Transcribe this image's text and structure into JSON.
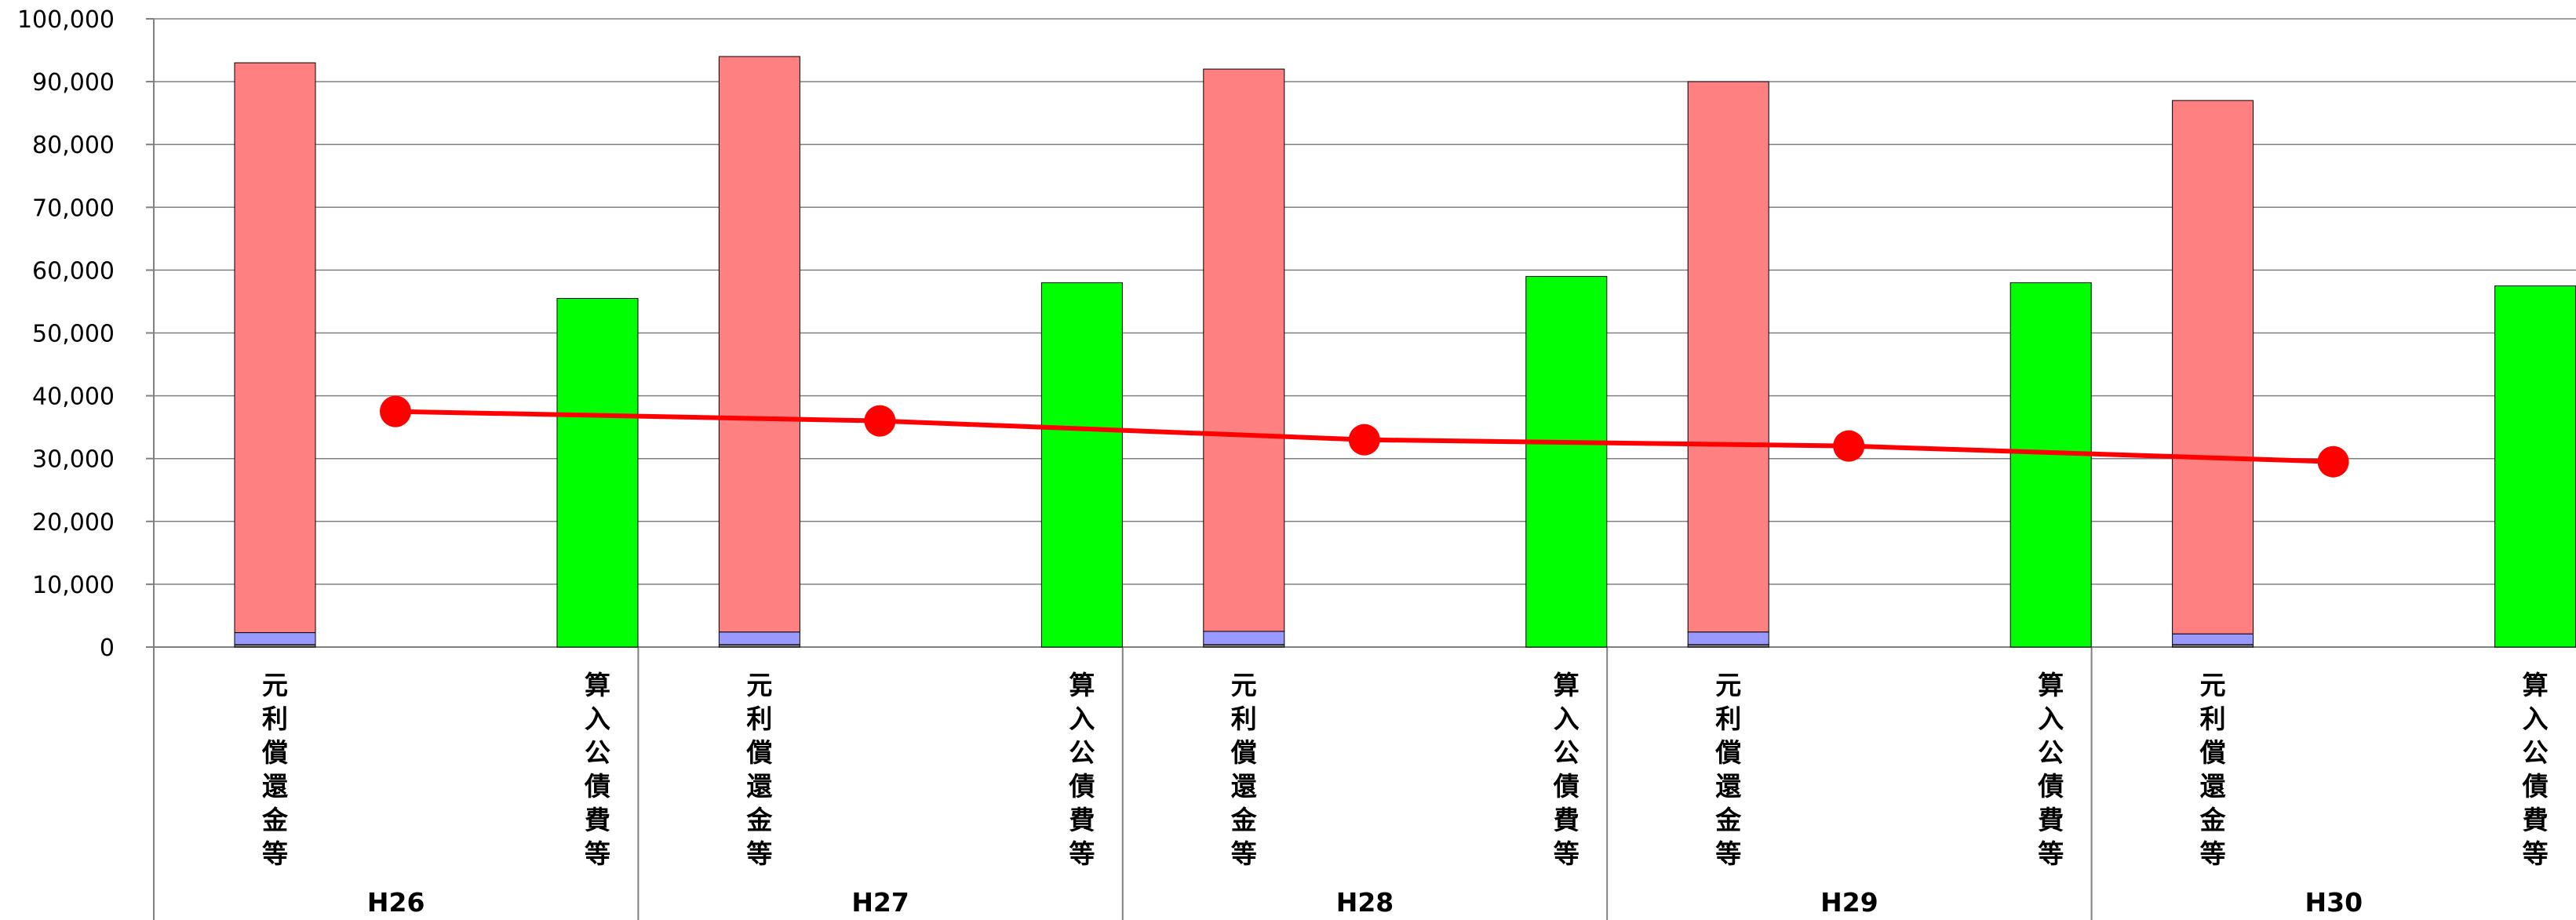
{
  "chart_data": {
    "type": "bar",
    "ylim": [
      0,
      100000
    ],
    "yticks": [
      0,
      10000,
      20000,
      30000,
      40000,
      50000,
      60000,
      70000,
      80000,
      90000,
      100000
    ],
    "ytick_labels": [
      "0",
      "10,000",
      "20,000",
      "30,000",
      "40,000",
      "50,000",
      "60,000",
      "70,000",
      "80,000",
      "90,000",
      "100,000"
    ],
    "grid": true,
    "groups": [
      "H26",
      "H27",
      "H28",
      "H29",
      "H30"
    ],
    "bar_categories": [
      "元利償還金等",
      "算入公債費等"
    ],
    "stacked_series": [
      {
        "values": [
          400,
          400,
          400,
          400,
          400
        ],
        "color": "#808080"
      },
      {
        "values": [
          1900,
          2000,
          2100,
          2000,
          1700
        ],
        "color": "#9999ff"
      },
      {
        "values": [
          90700,
          91600,
          89500,
          87600,
          84900
        ],
        "color": "#ff8080"
      }
    ],
    "single_series": {
      "values": [
        55500,
        58000,
        59000,
        58000,
        57500
      ],
      "color": "#00ff00"
    },
    "line_series": {
      "values": [
        37500,
        36000,
        33000,
        32000,
        29500
      ],
      "color": "#ff0000"
    }
  }
}
